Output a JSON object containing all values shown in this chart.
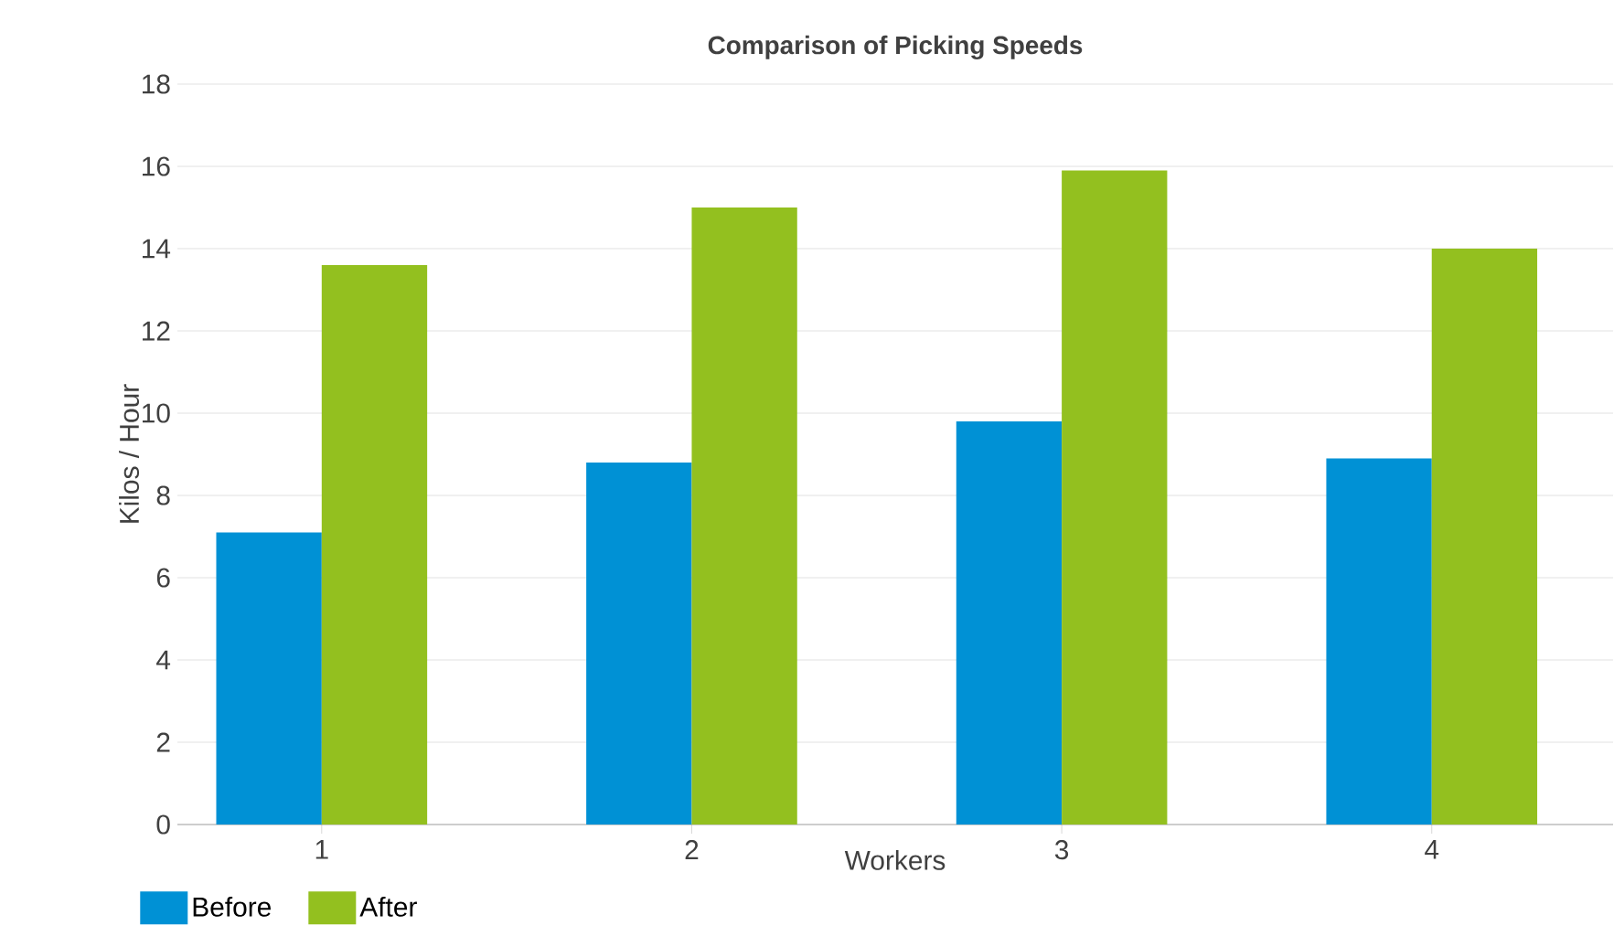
{
  "chart_data": {
    "type": "bar",
    "title": "Comparison of Picking Speeds",
    "xlabel": "Workers",
    "ylabel": "Kilos / Hour",
    "categories": [
      "1",
      "2",
      "3",
      "4"
    ],
    "series": [
      {
        "name": "Before",
        "color": "#0091d5",
        "values": [
          7.1,
          8.8,
          9.8,
          8.9
        ]
      },
      {
        "name": "After",
        "color": "#93c01f",
        "values": [
          13.6,
          15.0,
          15.9,
          14.0
        ]
      }
    ],
    "ylim": [
      0,
      18
    ],
    "yticks": [
      0,
      2,
      4,
      6,
      8,
      10,
      12,
      14,
      16,
      18
    ],
    "grid": "y",
    "legend": "bottom"
  }
}
